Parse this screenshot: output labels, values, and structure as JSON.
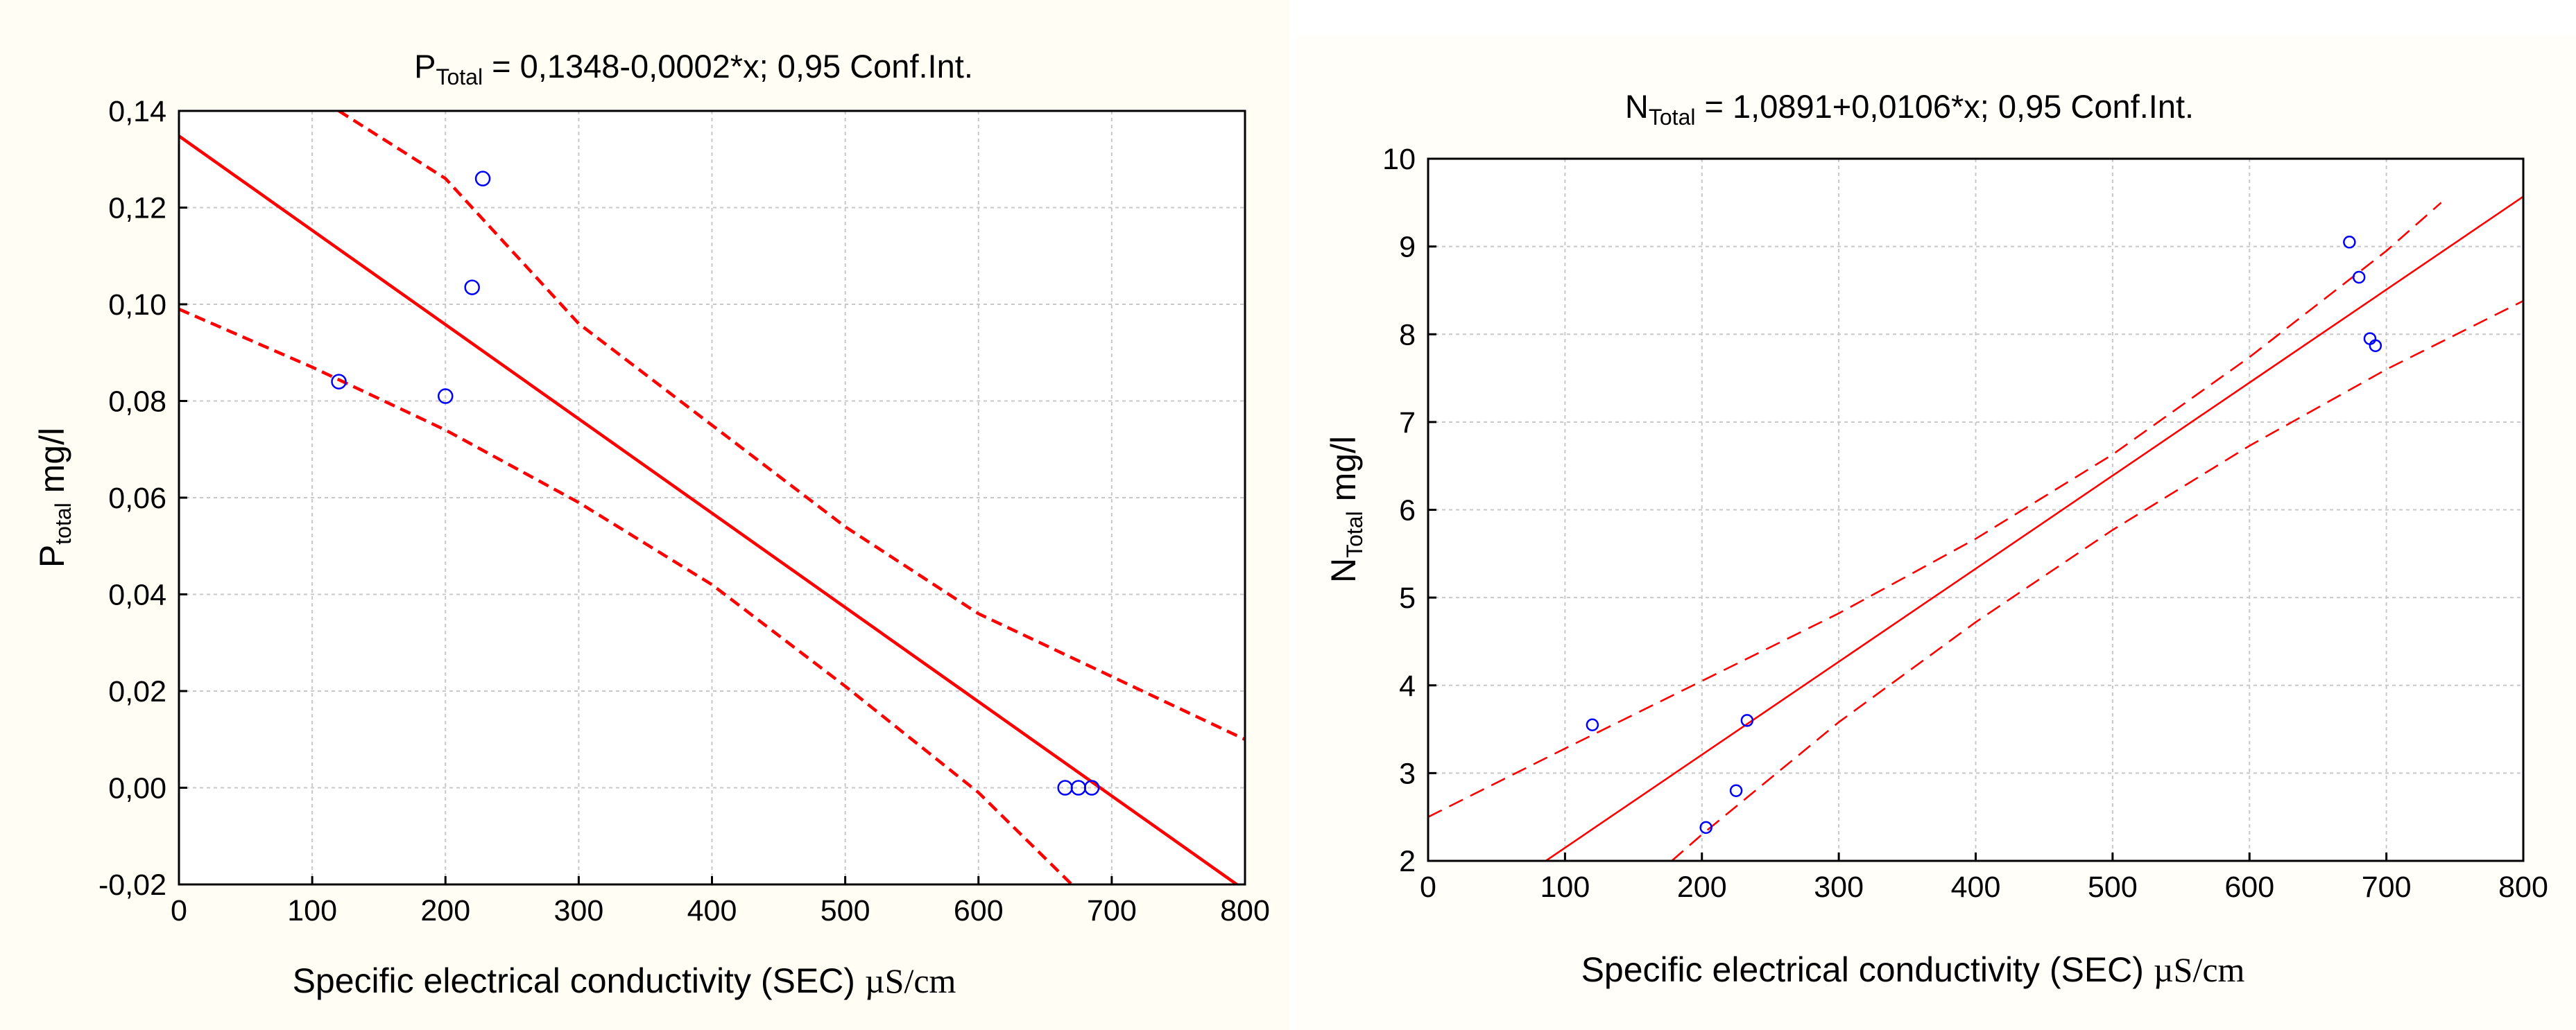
{
  "chart_data": [
    {
      "type": "scatter",
      "title": {
        "main": "P",
        "sub": "Total",
        "rest": " = 0,1348-0,0002*x; 0,95 Conf.Int."
      },
      "xlabel": {
        "text": "Specific electrical conductivity (SEC)",
        "unit": "µS/cm"
      },
      "ylabel": {
        "main": "P",
        "sub": "total",
        "rest": " mg/l"
      },
      "xlim": [
        0,
        800
      ],
      "ylim": [
        -0.02,
        0.14
      ],
      "x_ticks": [
        0,
        100,
        200,
        300,
        400,
        500,
        600,
        700,
        800
      ],
      "y_ticks": [
        -0.02,
        0.0,
        0.02,
        0.04,
        0.06,
        0.08,
        0.1,
        0.12,
        0.14
      ],
      "x_tick_labels": [
        "0",
        "100",
        "200",
        "300",
        "400",
        "500",
        "600",
        "700",
        "800"
      ],
      "y_tick_labels": [
        "-0,02",
        "0,00",
        "0,02",
        "0,04",
        "0,06",
        "0,08",
        "0,10",
        "0,12",
        "0,14"
      ],
      "grid": true,
      "series": [
        {
          "kind": "points",
          "color": "#0000ff",
          "points": [
            [
              120,
              0.084
            ],
            [
              200,
              0.081
            ],
            [
              220,
              0.1035
            ],
            [
              228,
              0.126
            ],
            [
              665,
              0.0
            ],
            [
              675,
              0.0
            ],
            [
              685,
              0.0
            ]
          ]
        },
        {
          "kind": "fit",
          "color": "#ff0000",
          "intercept": 0.1348,
          "slope": -0.000195
        },
        {
          "kind": "conf-upper",
          "color": "#ff0000",
          "points": [
            [
              120,
              0.14
            ],
            [
              200,
              0.126
            ],
            [
              300,
              0.096
            ],
            [
              400,
              0.075
            ],
            [
              500,
              0.054
            ],
            [
              600,
              0.036
            ],
            [
              700,
              0.023
            ],
            [
              800,
              0.01
            ]
          ]
        },
        {
          "kind": "conf-lower",
          "color": "#ff0000",
          "points": [
            [
              0,
              0.099
            ],
            [
              100,
              0.087
            ],
            [
              200,
              0.074
            ],
            [
              300,
              0.059
            ],
            [
              400,
              0.042
            ],
            [
              500,
              0.021
            ],
            [
              600,
              -0.001
            ],
            [
              670,
              -0.02
            ]
          ]
        }
      ]
    },
    {
      "type": "scatter",
      "title": {
        "main": "N",
        "sub": "Total",
        "rest": " = 1,0891+0,0106*x; 0,95 Conf.Int."
      },
      "xlabel": {
        "text": "Specific electrical conductivity (SEC)",
        "unit": "µS/cm"
      },
      "ylabel": {
        "main": "N",
        "sub": "Total",
        "rest": " mg/l"
      },
      "xlim": [
        0,
        800
      ],
      "ylim": [
        2,
        10
      ],
      "x_ticks": [
        0,
        100,
        200,
        300,
        400,
        500,
        600,
        700,
        800
      ],
      "y_ticks": [
        2,
        3,
        4,
        5,
        6,
        7,
        8,
        9,
        10
      ],
      "x_tick_labels": [
        "0",
        "100",
        "200",
        "300",
        "400",
        "500",
        "600",
        "700",
        "800"
      ],
      "y_tick_labels": [
        "2",
        "3",
        "4",
        "5",
        "6",
        "7",
        "8",
        "9",
        "10"
      ],
      "grid": true,
      "series": [
        {
          "kind": "points",
          "color": "#0000ff",
          "points": [
            [
              120,
              3.55
            ],
            [
              203,
              2.38
            ],
            [
              225,
              2.8
            ],
            [
              233,
              3.6
            ],
            [
              673,
              9.05
            ],
            [
              680,
              8.65
            ],
            [
              688,
              7.95
            ],
            [
              692,
              7.87
            ]
          ]
        },
        {
          "kind": "fit",
          "color": "#ff0000",
          "intercept": 1.0891,
          "slope": 0.0106
        },
        {
          "kind": "conf-upper",
          "color": "#ff0000",
          "points": [
            [
              0,
              2.5
            ],
            [
              100,
              3.28
            ],
            [
              200,
              4.05
            ],
            [
              300,
              4.82
            ],
            [
              400,
              5.67
            ],
            [
              500,
              6.63
            ],
            [
              600,
              7.74
            ],
            [
              700,
              8.95
            ],
            [
              740,
              9.5
            ]
          ]
        },
        {
          "kind": "conf-lower",
          "color": "#ff0000",
          "points": [
            [
              178,
              2.0
            ],
            [
              200,
              2.3
            ],
            [
              300,
              3.58
            ],
            [
              400,
              4.72
            ],
            [
              500,
              5.77
            ],
            [
              600,
              6.73
            ],
            [
              700,
              7.6
            ],
            [
              800,
              8.38
            ]
          ]
        }
      ]
    }
  ]
}
